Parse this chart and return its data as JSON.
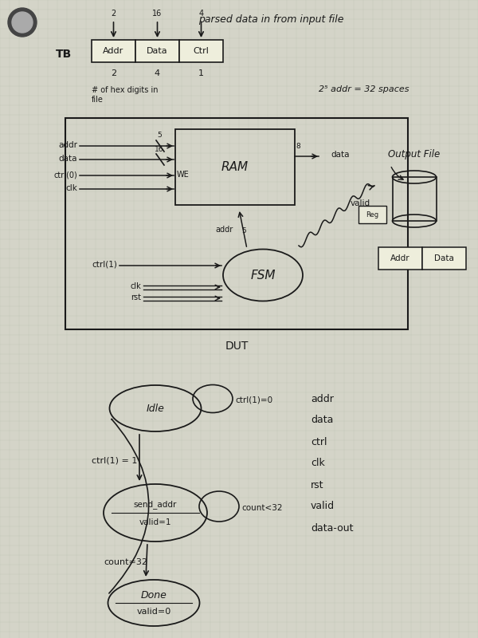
{
  "bg_color": "#d4d4c8",
  "grid_color": "#b8c0b0",
  "line_color": "#1a1a1a",
  "title": "parsed data in from input file",
  "tb_label": "TB",
  "table_cols": [
    "Addr",
    "Data",
    "Ctrl"
  ],
  "arrow_nums": [
    "2",
    "16",
    "4"
  ],
  "table_vals": [
    "2",
    "4",
    "1"
  ],
  "table_note1": "# of hex digits in",
  "table_note2": "file",
  "note_addr": "2⁵ addr = 32 spaces",
  "ram_label": "RAM",
  "fsm_label": "FSM",
  "dut_label": "DUT",
  "output_label": "Output File",
  "we_label": "WE",
  "signals": [
    "addr",
    "data",
    "ctrl",
    "clk",
    "rst",
    "valid",
    "data-out"
  ],
  "idle_label": "Idle",
  "send_label1": "send_addr",
  "send_label2": "valid=1",
  "done_label1": "Done",
  "done_label2": "valid=0",
  "cond_idle_self": "ctrl(1)=0",
  "cond_idle_send": "ctrl(1) = 1",
  "cond_send_self": "count<32",
  "cond_send_done": "count=32"
}
